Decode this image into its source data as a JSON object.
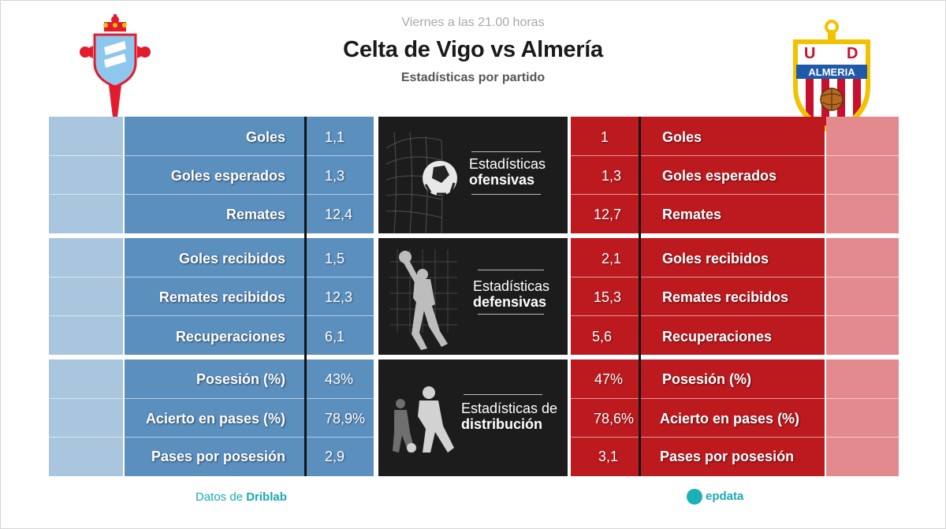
{
  "header": {
    "when": "Viernes a las 21.00 horas",
    "title": "Celta de Vigo vs Almería",
    "subtitle": "Estadísticas por partido"
  },
  "teams": {
    "home": {
      "name": "Celta de Vigo",
      "color": "#5b8fbe"
    },
    "away": {
      "name": "Almería",
      "color": "#bd1a1f",
      "crest_text_top": "U D",
      "crest_text_band": "ALMERIA"
    }
  },
  "sections": [
    {
      "title_light": "Estadísticas",
      "title_bold": "ofensivas",
      "icon": "soccer-ball-net-icon",
      "rows": [
        {
          "label": "Goles",
          "home": "1,1",
          "away": "1"
        },
        {
          "label": "Goles esperados",
          "home": "1,3",
          "away": "1,3"
        },
        {
          "label": "Remates",
          "home": "12,4",
          "away": "12,7"
        }
      ]
    },
    {
      "title_light": "Estadísticas",
      "title_bold": "defensivas",
      "icon": "goalkeeper-icon",
      "rows": [
        {
          "label": "Goles recibidos",
          "home": "1,5",
          "away": "2,1"
        },
        {
          "label": "Remates recibidos",
          "home": "12,3",
          "away": "15,3"
        },
        {
          "label": "Recuperaciones",
          "home": "6,1",
          "away": "5,6"
        }
      ]
    },
    {
      "title_light": "Estadísticas de",
      "title_bold": "distribución",
      "icon": "players-icon",
      "rows": [
        {
          "label": "Posesión (%)",
          "home": "43%",
          "away": "47%"
        },
        {
          "label": "Acierto en pases (%)",
          "home": "78,9%",
          "away": "78,6%"
        },
        {
          "label": "Pases por posesión",
          "home": "2,9",
          "away": "3,1"
        }
      ]
    }
  ],
  "footer": {
    "source_prefix": "Datos de",
    "source_name": "Driblab",
    "brand": "epdata"
  }
}
